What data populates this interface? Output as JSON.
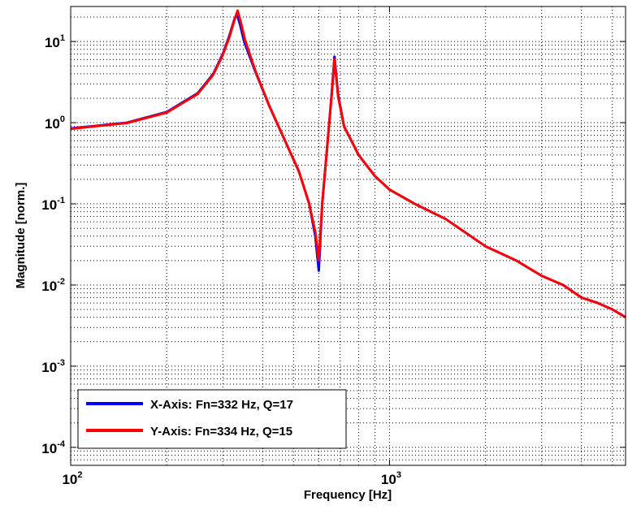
{
  "chart_data": {
    "type": "line",
    "title": "",
    "xlabel": "Frequency [Hz]",
    "ylabel": "Magnitude [norm.]",
    "xscale": "log",
    "yscale": "log",
    "xlim": [
      100,
      5500
    ],
    "ylim": [
      6e-05,
      27
    ],
    "grid": "major and minor, dotted",
    "legend_position": "bottom-left",
    "x_ticks": [
      {
        "base": "10",
        "exp": "2",
        "value": 100
      },
      {
        "base": "10",
        "exp": "3",
        "value": 1000
      }
    ],
    "y_ticks": [
      {
        "base": "10",
        "exp": "1",
        "value": 10
      },
      {
        "base": "10",
        "exp": "0",
        "value": 1
      },
      {
        "base": "10",
        "exp": "-1",
        "value": 0.1
      },
      {
        "base": "10",
        "exp": "-2",
        "value": 0.01
      },
      {
        "base": "10",
        "exp": "-3",
        "value": 0.001
      },
      {
        "base": "10",
        "exp": "-4",
        "value": 0.0001
      }
    ],
    "series": [
      {
        "name": "X-Axis: Fn=332 Hz, Q=17",
        "color": "#0000ff",
        "x": [
          100,
          150,
          200,
          250,
          280,
          300,
          315,
          325,
          332,
          340,
          350,
          380,
          420,
          470,
          520,
          560,
          585,
          600,
          615,
          640,
          660,
          672,
          690,
          720,
          800,
          900,
          1000,
          1200,
          1500,
          2000,
          2500,
          3000,
          3500,
          4000,
          4500,
          5000,
          5500
        ],
        "y": [
          0.85,
          1.0,
          1.35,
          2.3,
          4.0,
          7.0,
          12.0,
          18.0,
          22.0,
          16.0,
          10.0,
          4.2,
          1.6,
          0.6,
          0.25,
          0.1,
          0.04,
          0.015,
          0.1,
          0.6,
          2.5,
          6.5,
          2.2,
          0.9,
          0.4,
          0.22,
          0.15,
          0.1,
          0.065,
          0.03,
          0.02,
          0.013,
          0.01,
          0.007,
          0.006,
          0.005,
          0.004
        ]
      },
      {
        "name": "Y-Axis: Fn=334 Hz, Q=15",
        "color": "#ff0000",
        "x": [
          100,
          150,
          200,
          250,
          280,
          300,
          315,
          325,
          334,
          342,
          352,
          380,
          420,
          470,
          520,
          560,
          585,
          600,
          615,
          640,
          660,
          672,
          690,
          720,
          800,
          900,
          1000,
          1200,
          1500,
          2000,
          2500,
          3000,
          3500,
          4000,
          4500,
          5000,
          5500
        ],
        "y": [
          0.84,
          0.99,
          1.33,
          2.25,
          3.9,
          6.8,
          11.5,
          17.5,
          24.0,
          17.0,
          10.5,
          4.3,
          1.6,
          0.6,
          0.25,
          0.1,
          0.045,
          0.02,
          0.1,
          0.6,
          2.4,
          6.0,
          2.1,
          0.9,
          0.4,
          0.22,
          0.15,
          0.1,
          0.065,
          0.03,
          0.02,
          0.013,
          0.01,
          0.007,
          0.006,
          0.005,
          0.004
        ]
      }
    ]
  }
}
